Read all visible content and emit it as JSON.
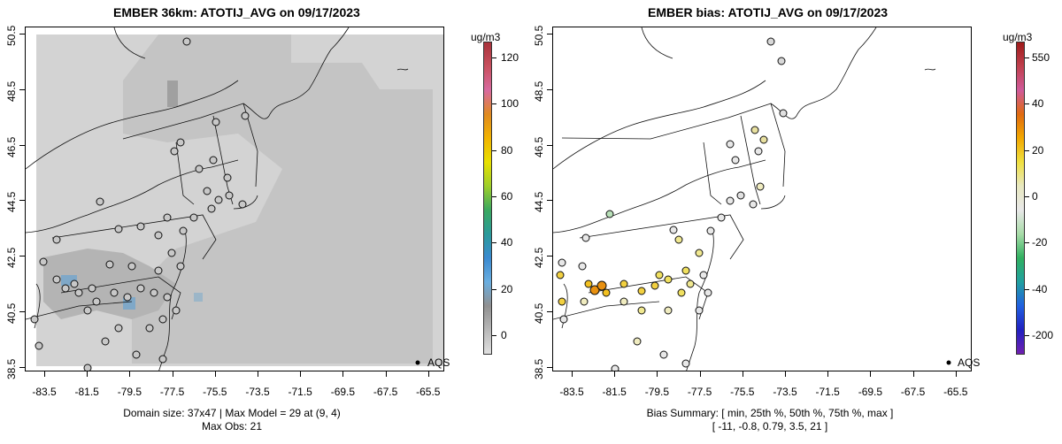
{
  "left": {
    "title": "EMBER 36km: ATOTIJ_AVG on 09/17/2023",
    "footer_line1": "Domain size: 37x47 | Max Model = 29 at (9, 4)",
    "footer_line2": "Max Obs: 21",
    "colorbar": {
      "unit": "ug/m3",
      "ticks": [
        "120",
        "100",
        "80",
        "60",
        "40",
        "20",
        "0"
      ],
      "colors": [
        "#a8323a",
        "#c8505e",
        "#d86aa0",
        "#e08a20",
        "#f2b400",
        "#e8e000",
        "#9ecf2a",
        "#3aa860",
        "#2a9a9a",
        "#3a8ad0",
        "#6aaee0",
        "#909090",
        "#b8b8b8",
        "#e0e0e0"
      ]
    },
    "legend_label": "AQS"
  },
  "right": {
    "title": "EMBER bias: ATOTIJ_AVG on 09/17/2023",
    "footer_line1": "Bias Summary: [ min, 25th %, 50th %, 75th %, max ]",
    "footer_line2": "[ -11,   -0.8,   0.79,   3.5,   21 ]",
    "colorbar": {
      "unit": "ug/m3",
      "ticks": [
        "550",
        "40",
        "20",
        "0",
        "-20",
        "-40",
        "-200"
      ],
      "colors": [
        "#9e1a1a",
        "#c0404e",
        "#d05a9a",
        "#e06a10",
        "#f2a800",
        "#f0e040",
        "#e8e8c0",
        "#e8e8e8",
        "#a8dca8",
        "#30b060",
        "#20a0a0",
        "#2060e0",
        "#2020c0",
        "#7020b0"
      ]
    },
    "legend_label": "AQS"
  },
  "axes": {
    "x_ticks": [
      "-83.5",
      "-81.5",
      "-79.5",
      "-77.5",
      "-75.5",
      "-73.5",
      "-71.5",
      "-69.5",
      "-67.5",
      "-65.5"
    ],
    "y_ticks": [
      "50.5",
      "48.5",
      "46.5",
      "44.5",
      "42.5",
      "40.5",
      "38.5"
    ]
  }
}
